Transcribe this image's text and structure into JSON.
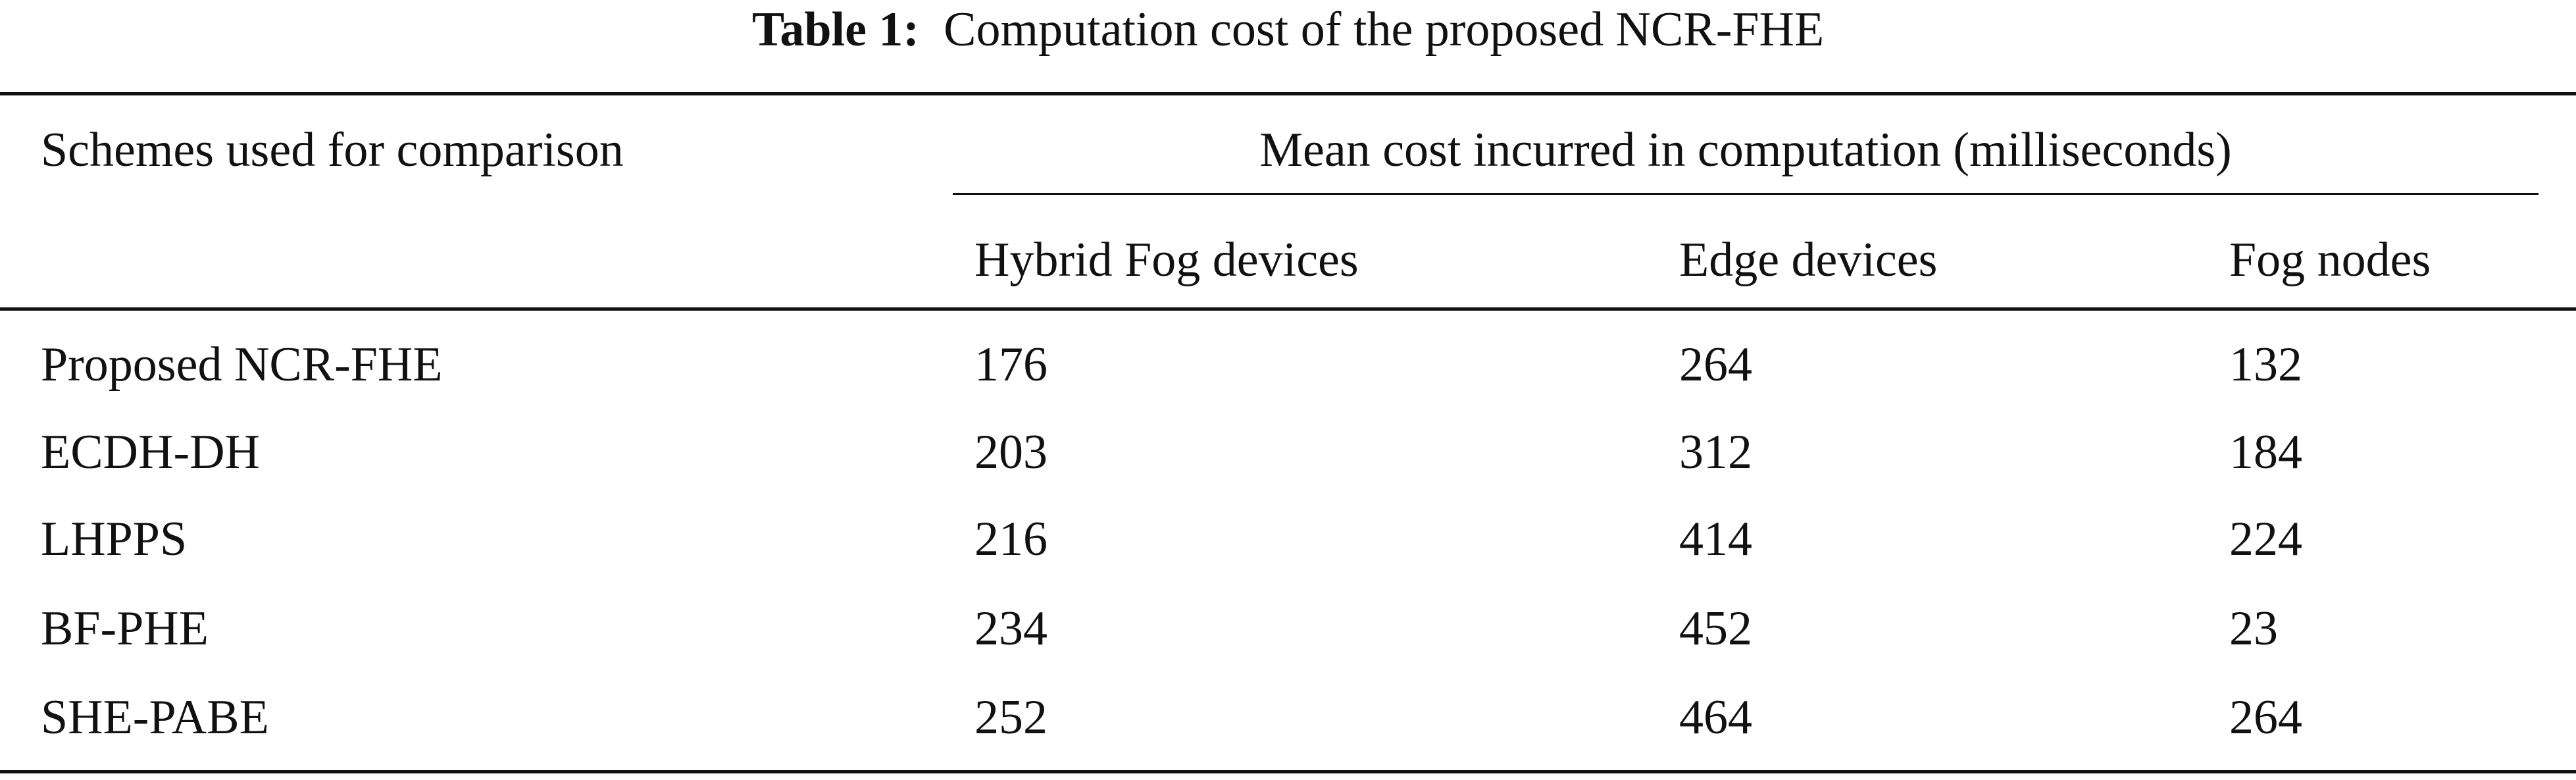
{
  "caption": {
    "label": "Table 1:",
    "text": "Computation cost of the proposed NCR-FHE"
  },
  "table": {
    "header": {
      "scheme": "Schemes used for comparison",
      "group": "Mean cost incurred in computation (milliseconds)",
      "columns": [
        "Hybrid Fog devices",
        "Edge devices",
        "Fog nodes"
      ]
    },
    "rows": [
      [
        "Proposed NCR-FHE",
        176,
        264,
        132
      ],
      [
        "ECDH-DH",
        203,
        312,
        184
      ],
      [
        "LHPPS",
        216,
        414,
        224
      ],
      [
        "BF-PHE",
        234,
        452,
        23
      ],
      [
        "SHE-PABE",
        252,
        464,
        264
      ]
    ]
  }
}
